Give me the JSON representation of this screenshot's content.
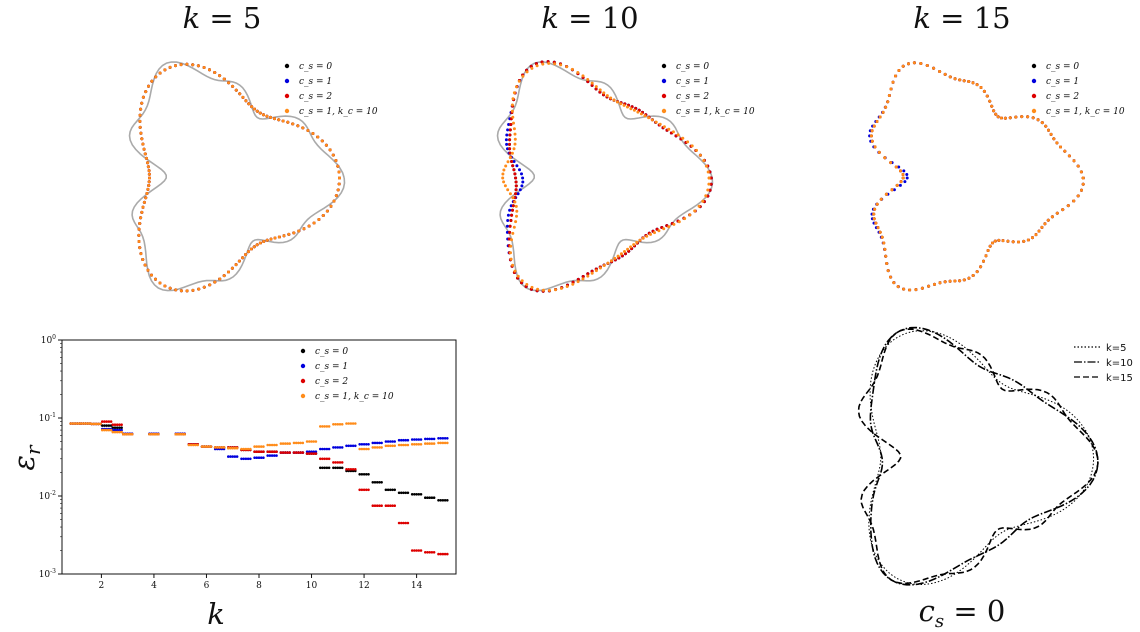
{
  "chart_data": [
    {
      "type": "line",
      "title": "k = 5",
      "k": 5,
      "series": [
        {
          "name": "c_s = 0",
          "color": "#000000"
        },
        {
          "name": "c_s = 1",
          "color": "#0000dd"
        },
        {
          "name": "c_s = 2",
          "color": "#dd0000"
        },
        {
          "name": "c_s = 1, k_c = 10",
          "color": "#ff8c1a"
        }
      ],
      "reference_curve_color": "#aaaaaa"
    },
    {
      "type": "line",
      "title": "k = 10",
      "k": 10,
      "series": [
        {
          "name": "c_s = 0",
          "color": "#000000"
        },
        {
          "name": "c_s = 1",
          "color": "#0000dd"
        },
        {
          "name": "c_s = 2",
          "color": "#dd0000"
        },
        {
          "name": "c_s = 1, k_c = 10",
          "color": "#ff8c1a"
        }
      ],
      "reference_curve_color": "#aaaaaa"
    },
    {
      "type": "line",
      "title": "k = 15",
      "k": 15,
      "series": [
        {
          "name": "c_s = 0",
          "color": "#000000"
        },
        {
          "name": "c_s = 1",
          "color": "#0000dd"
        },
        {
          "name": "c_s = 2",
          "color": "#dd0000"
        },
        {
          "name": "c_s = 1, k_c = 10",
          "color": "#ff8c1a"
        }
      ],
      "reference_curve_color": "#aaaaaa"
    },
    {
      "type": "scatter",
      "xlabel": "k",
      "ylabel": "ε_r",
      "yscale": "log",
      "xlim": [
        0.5,
        15.5
      ],
      "ylim": [
        0.001,
        1
      ],
      "xticks": [
        "2",
        "4",
        "6",
        "8",
        "10",
        "12",
        "14"
      ],
      "yticks": [
        "10^-3",
        "10^-2",
        "10^-1",
        "10^0"
      ],
      "legend": "top-right",
      "series": [
        {
          "name": "c_s = 0",
          "color": "#000000",
          "x": [
            1.0,
            1.4,
            1.8,
            2.2,
            2.6,
            3.0,
            4.0,
            5.0,
            5.5,
            6.0,
            6.5,
            7.0,
            7.5,
            8.0,
            8.5,
            9.0,
            9.5,
            10.0,
            10.5,
            11.0,
            11.5,
            12.0,
            12.5,
            13.0,
            13.5,
            14.0,
            14.5,
            15.0
          ],
          "y": [
            0.085,
            0.085,
            0.084,
            0.08,
            0.075,
            0.062,
            0.062,
            0.062,
            0.046,
            0.043,
            0.042,
            0.042,
            0.039,
            0.037,
            0.037,
            0.036,
            0.036,
            0.035,
            0.023,
            0.023,
            0.021,
            0.019,
            0.015,
            0.012,
            0.011,
            0.0105,
            0.0095,
            0.0088
          ]
        },
        {
          "name": "c_s = 1",
          "color": "#0000dd",
          "x": [
            1.0,
            1.4,
            1.8,
            2.2,
            2.6,
            3.0,
            4.0,
            5.0,
            5.5,
            6.0,
            6.5,
            7.0,
            7.5,
            8.0,
            8.5,
            9.0,
            9.5,
            10.0,
            10.5,
            11.0,
            11.5,
            12.0,
            12.5,
            13.0,
            13.5,
            14.0,
            14.5,
            15.0
          ],
          "y": [
            0.085,
            0.085,
            0.084,
            0.072,
            0.07,
            0.063,
            0.063,
            0.063,
            0.046,
            0.043,
            0.04,
            0.032,
            0.03,
            0.031,
            0.033,
            0.036,
            0.036,
            0.037,
            0.04,
            0.042,
            0.044,
            0.046,
            0.048,
            0.05,
            0.052,
            0.053,
            0.054,
            0.055
          ]
        },
        {
          "name": "c_s = 2",
          "color": "#dd0000",
          "x": [
            1.0,
            1.4,
            1.8,
            2.2,
            2.6,
            3.0,
            4.0,
            5.0,
            5.5,
            6.0,
            6.5,
            7.0,
            7.5,
            8.0,
            8.5,
            9.0,
            9.5,
            10.0,
            10.5,
            11.0,
            11.5,
            12.0,
            12.5,
            13.0,
            13.5,
            14.0,
            14.5,
            15.0
          ],
          "y": [
            0.085,
            0.085,
            0.084,
            0.09,
            0.082,
            0.062,
            0.062,
            0.062,
            0.046,
            0.043,
            0.042,
            0.042,
            0.039,
            0.037,
            0.037,
            0.036,
            0.036,
            0.035,
            0.03,
            0.027,
            0.022,
            0.012,
            0.0075,
            0.0075,
            0.0045,
            0.002,
            0.0019,
            0.0018
          ]
        },
        {
          "name": "c_s = 1, k_c = 10",
          "color": "#ff8c1a",
          "x": [
            1.0,
            1.4,
            1.8,
            2.2,
            2.6,
            3.0,
            4.0,
            5.0,
            5.5,
            6.0,
            6.5,
            7.0,
            7.5,
            8.0,
            8.5,
            9.0,
            9.5,
            10.0,
            10.5,
            11.0,
            11.5,
            12.0,
            12.5,
            13.0,
            13.5,
            14.0,
            14.5,
            15.0
          ],
          "y": [
            0.085,
            0.085,
            0.084,
            0.07,
            0.066,
            0.062,
            0.062,
            0.062,
            0.045,
            0.043,
            0.042,
            0.041,
            0.04,
            0.043,
            0.045,
            0.047,
            0.048,
            0.05,
            0.078,
            0.083,
            0.085,
            0.04,
            0.042,
            0.044,
            0.045,
            0.046,
            0.047,
            0.048
          ]
        }
      ]
    },
    {
      "type": "line",
      "title": "c_s = 0",
      "series": [
        {
          "name": "k=5",
          "style": "dotted",
          "color": "#000000"
        },
        {
          "name": "k=10",
          "style": "dashdot",
          "color": "#000000"
        },
        {
          "name": "k=15",
          "style": "dashed",
          "color": "#000000"
        }
      ],
      "legend": "top-right"
    }
  ],
  "labels": {
    "title_k5": "k = 5",
    "title_k10": "k = 10",
    "title_k15": "k = 15",
    "bottom_right_title": "c_s = 0",
    "error_xlabel": "k",
    "error_ylabel": "ε_r"
  }
}
